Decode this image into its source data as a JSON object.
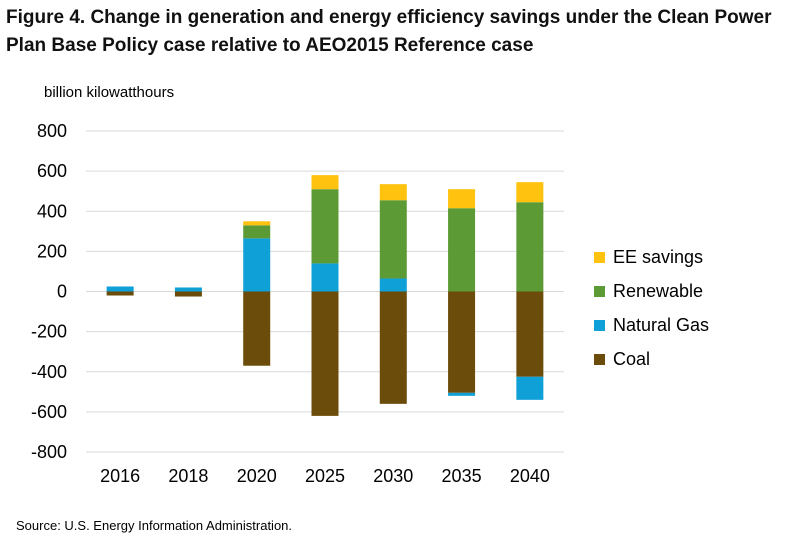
{
  "title": "Figure 4. Change in generation and energy efficiency savings under the Clean Power Plan Base Policy case relative to AEO2015 Reference case",
  "unit_label": "billion kilowatthours",
  "source": "Source: U.S. Energy Information Administration.",
  "chart_data": {
    "type": "bar",
    "stacked": true,
    "categories": [
      "2016",
      "2018",
      "2020",
      "2025",
      "2030",
      "2035",
      "2040"
    ],
    "ylim": [
      -800,
      800
    ],
    "yticks": [
      800,
      600,
      400,
      200,
      0,
      -200,
      -400,
      -600,
      -800
    ],
    "ylabel": "billion kilowatthours",
    "grid": true,
    "legend_position": "right",
    "series": [
      {
        "name": "Coal",
        "color": "#6b4c0a",
        "values": [
          -20,
          -25,
          -370,
          -620,
          -560,
          -505,
          -425
        ]
      },
      {
        "name": "Natural Gas",
        "color": "#0fa0d8",
        "values": [
          25,
          20,
          265,
          140,
          65,
          -15,
          -115
        ]
      },
      {
        "name": "Renewable",
        "color": "#5b9a34",
        "values": [
          0,
          0,
          65,
          370,
          390,
          415,
          445
        ]
      },
      {
        "name": "EE savings",
        "color": "#ffc20e",
        "values": [
          0,
          0,
          20,
          70,
          80,
          95,
          100
        ]
      }
    ]
  },
  "legend": [
    {
      "label": "EE savings",
      "color": "#ffc20e"
    },
    {
      "label": "Renewable",
      "color": "#5b9a34"
    },
    {
      "label": "Natural Gas",
      "color": "#0fa0d8"
    },
    {
      "label": "Coal",
      "color": "#6b4c0a"
    }
  ]
}
